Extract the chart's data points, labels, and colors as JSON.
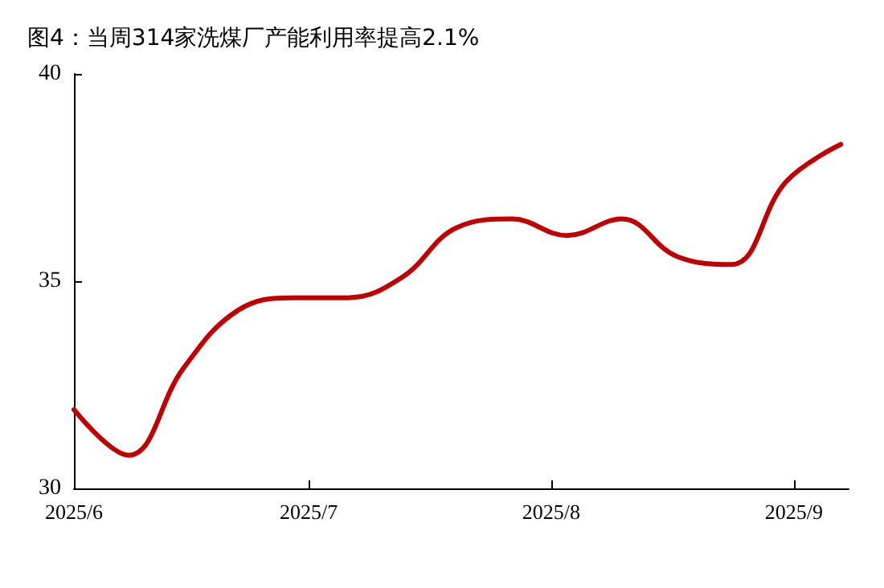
{
  "chart_data": {
    "type": "line",
    "title": "图4：当周314家洗煤厂产能利用率提高2.1%",
    "x": [
      "2025-06-01",
      "2025-06-08",
      "2025-06-15",
      "2025-06-22",
      "2025-06-29",
      "2025-07-06",
      "2025-07-13",
      "2025-07-20",
      "2025-07-27",
      "2025-08-03",
      "2025-08-10",
      "2025-08-17",
      "2025-08-24",
      "2025-08-31",
      "2025-09-07"
    ],
    "series": [
      {
        "color": "#c00000",
        "values": [
          31.9,
          30.8,
          32.9,
          34.3,
          34.6,
          34.6,
          35.1,
          36.3,
          36.5,
          36.1,
          36.5,
          35.6,
          35.4,
          37.4,
          38.3
        ]
      }
    ],
    "xlim": [
      "2025-06-01",
      "2025-09-08"
    ],
    "xticks": [
      {
        "value": "2025-06-01",
        "label": "2025/6"
      },
      {
        "value": "2025-07-01",
        "label": "2025/7"
      },
      {
        "value": "2025-08-01",
        "label": "2025/8"
      },
      {
        "value": "2025-09-01",
        "label": "2025/9"
      }
    ],
    "ylim": [
      30,
      40
    ],
    "yticks": [
      30,
      35,
      40
    ],
    "grid": false,
    "marker": "none",
    "line_style": "solid"
  }
}
